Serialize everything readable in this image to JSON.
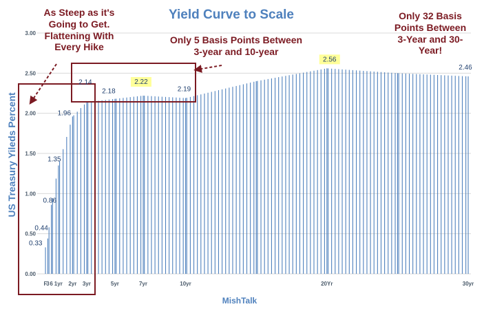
{
  "chart_data": {
    "type": "bar",
    "title": "Yield Curve to Scale",
    "xlabel": "MishTalk",
    "ylabel": "US Treasury Yileds Percent",
    "ylim": [
      0,
      3.0
    ],
    "yticks": [
      "0.00",
      "0.50",
      "1.00",
      "1.50",
      "2.00",
      "2.50",
      "3.00"
    ],
    "x_range_months": [
      1,
      360
    ],
    "x_ticks": [
      {
        "month": 1,
        "label": "F"
      },
      {
        "month": 3,
        "label": "3"
      },
      {
        "month": 6,
        "label": "6"
      },
      {
        "month": 12,
        "label": "1yr"
      },
      {
        "month": 24,
        "label": "2yr"
      },
      {
        "month": 36,
        "label": "3yr"
      },
      {
        "month": 60,
        "label": "5yr"
      },
      {
        "month": 84,
        "label": "7yr"
      },
      {
        "month": 120,
        "label": "10yr"
      },
      {
        "month": 240,
        "label": "20Yr"
      },
      {
        "month": 360,
        "label": "30yr"
      }
    ],
    "key_points": [
      {
        "month": 1,
        "value": 0.33,
        "label": "0.33"
      },
      {
        "month": 3,
        "value": 0.44,
        "label": "0.44"
      },
      {
        "month": 6,
        "value": 0.86,
        "label": "0.86"
      },
      {
        "month": 12,
        "value": 1.35,
        "label": "1.35"
      },
      {
        "month": 24,
        "value": 1.96,
        "label": "1.96"
      },
      {
        "month": 36,
        "value": 2.14,
        "label": "2.14"
      },
      {
        "month": 60,
        "value": 2.18,
        "label": "2.18"
      },
      {
        "month": 84,
        "value": 2.22,
        "label": "2.22",
        "highlight": true
      },
      {
        "month": 120,
        "value": 2.19,
        "label": "2.19"
      },
      {
        "month": 180,
        "value": 2.4
      },
      {
        "month": 240,
        "value": 2.56,
        "label": "2.56",
        "highlight": true
      },
      {
        "month": 300,
        "value": 2.5
      },
      {
        "month": 360,
        "value": 2.46,
        "label": "2.46"
      }
    ],
    "bar_step_months": 3,
    "grid": true,
    "colors": {
      "bar": "#4f81bd",
      "label": "#1f3f6e",
      "title": "#4f81bd",
      "highlight": "#ffff99",
      "annotation": "#7b1a22",
      "grid": "#d9d9d9",
      "ytick": "#4a5a6a"
    }
  },
  "annotations": [
    {
      "lines": [
        "As Steep as it's",
        "Going to Get.",
        "Flattening With",
        "Every Hike"
      ]
    },
    {
      "lines": [
        "Only 5 Basis Points Between",
        "3-year and 10-year"
      ]
    },
    {
      "lines": [
        "Only 32 Basis",
        "Points Between",
        "3-Year and 30-",
        "Year!"
      ]
    }
  ]
}
